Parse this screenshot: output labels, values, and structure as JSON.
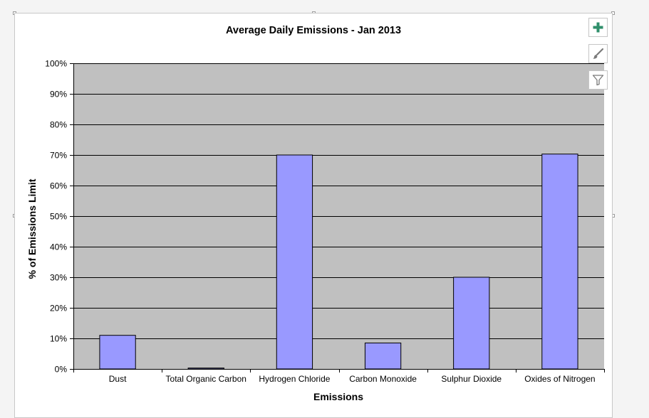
{
  "chart_data": {
    "type": "bar",
    "title": "Average Daily Emissions - Jan 2013",
    "xlabel": "Emissions",
    "ylabel": "% of Emissions Limit",
    "categories": [
      "Dust",
      "Total Organic Carbon",
      "Hydrogen Chloride",
      "Carbon Monoxide",
      "Sulphur Dioxide",
      "Oxides of Nitrogen"
    ],
    "values": [
      11,
      0.3,
      70,
      8.5,
      30,
      70.3
    ],
    "ylim": [
      0,
      100
    ],
    "yticks": [
      0,
      10,
      20,
      30,
      40,
      50,
      60,
      70,
      80,
      90,
      100
    ],
    "ytick_labels": [
      "0%",
      "10%",
      "20%",
      "30%",
      "40%",
      "50%",
      "60%",
      "70%",
      "80%",
      "90%",
      "100%"
    ],
    "grid": true,
    "legend": "none",
    "colors": {
      "bar": "#9999ff",
      "plot_background": "#c0c0c0",
      "gridline": "#000000"
    }
  },
  "chart_tools": [
    {
      "name": "chart-elements-button",
      "icon": "plus-icon"
    },
    {
      "name": "chart-styles-button",
      "icon": "paintbrush-icon"
    },
    {
      "name": "chart-filters-button",
      "icon": "filter-icon"
    }
  ]
}
